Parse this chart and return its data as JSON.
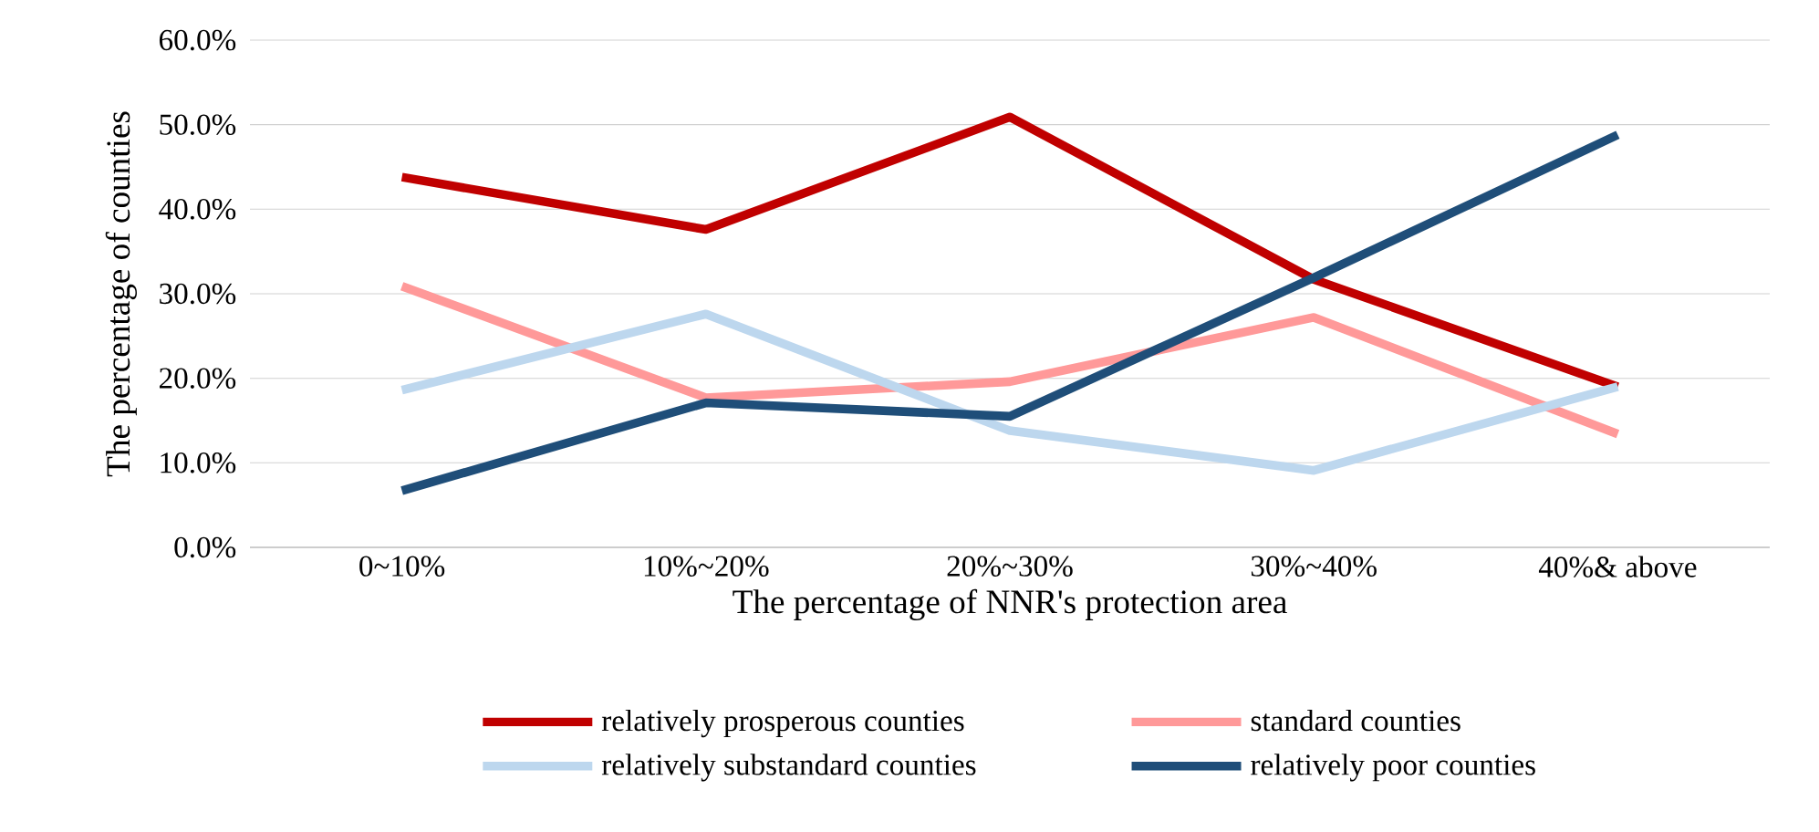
{
  "chart_data": {
    "type": "line",
    "xlabel": "The percentage of NNR's protection area",
    "ylabel": "The percentage of counties",
    "categories": [
      "0~10%",
      "10%~20%",
      "20%~30%",
      "30%~40%",
      "40%& above"
    ],
    "series": [
      {
        "name": "relatively prosperous counties",
        "color": "#c00000",
        "values": [
          43.8,
          37.6,
          50.9,
          31.7,
          19.0
        ]
      },
      {
        "name": "standard counties",
        "color": "#ff9999",
        "values": [
          30.9,
          17.7,
          19.6,
          27.2,
          13.4
        ]
      },
      {
        "name": "relatively substandard counties",
        "color": "#bdd7ee",
        "values": [
          18.6,
          27.6,
          13.8,
          9.1,
          19.0
        ]
      },
      {
        "name": "relatively poor counties",
        "color": "#1f4e79",
        "values": [
          6.7,
          17.1,
          15.5,
          31.9,
          48.8
        ]
      }
    ],
    "ylim": [
      0,
      60
    ],
    "yticks": [
      {
        "value": 0,
        "label": "0.0%"
      },
      {
        "value": 10,
        "label": "10.0%"
      },
      {
        "value": 20,
        "label": "20.0%"
      },
      {
        "value": 30,
        "label": "30.0%"
      },
      {
        "value": 40,
        "label": "40.0%"
      },
      {
        "value": 50,
        "label": "50.0%"
      },
      {
        "value": 60,
        "label": "60.0%"
      }
    ],
    "grid": "y",
    "legend": "bottom",
    "marker": "none",
    "line_style": "solid"
  }
}
